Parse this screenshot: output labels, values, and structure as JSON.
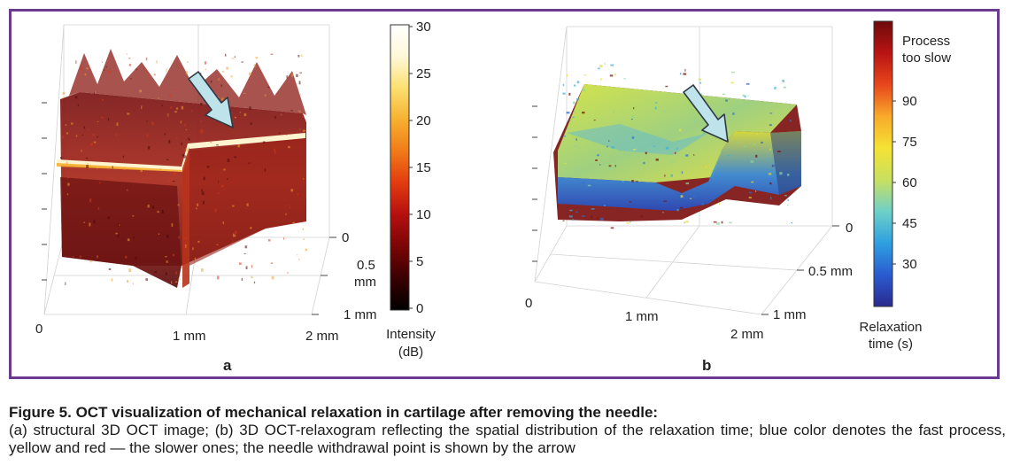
{
  "panel_a": {
    "label": "a",
    "axis_x": {
      "ticks": [
        "0",
        "1 mm",
        "2 mm"
      ]
    },
    "axis_y": {
      "ticks": [
        "0",
        "0.5",
        "mm",
        "1 mm"
      ]
    },
    "colorbar": {
      "ticks": [
        "30",
        "25",
        "20",
        "15",
        "10",
        "5",
        "0"
      ],
      "title_line1": "Intensity",
      "title_line2": "(dB)",
      "stops": [
        "#000000",
        "#3a0000",
        "#7a0505",
        "#b50f0f",
        "#e23a10",
        "#f07a18",
        "#f7b030",
        "#fbe070",
        "#fff8d8",
        "#ffffff"
      ]
    }
  },
  "panel_b": {
    "label": "b",
    "axis_x": {
      "ticks": [
        "0",
        "1 mm",
        "2 mm"
      ]
    },
    "axis_y": {
      "ticks": [
        "0",
        "0.5 mm",
        "1 mm"
      ]
    },
    "colorbar": {
      "top_label_line1": "Process",
      "top_label_line2": "too slow",
      "ticks": [
        "90",
        "75",
        "60",
        "45",
        "30"
      ],
      "title_line1": "Relaxation",
      "title_line2": "time (s)",
      "stops": [
        "#2a2a8e",
        "#2b5bd0",
        "#2ea0e0",
        "#6fd0c8",
        "#c8e060",
        "#f5e234",
        "#f8a92a",
        "#e8461c",
        "#b81414",
        "#6e0a0a"
      ]
    }
  },
  "caption": {
    "title": "Figure 5. OCT visualization of mechanical relaxation in cartilage after removing the needle:",
    "body": "(a) structural 3D OCT image; (b) 3D OCT-relaxogram reflecting the spatial distribution of the relaxation time; blue color denotes the fast process, yellow and red — the slower ones; the needle withdrawal point is shown by the arrow"
  },
  "colors": {
    "frame": "#6a3b8e",
    "arrow_fill": "#bfe3ea",
    "arrow_stroke": "#2f3a44"
  }
}
